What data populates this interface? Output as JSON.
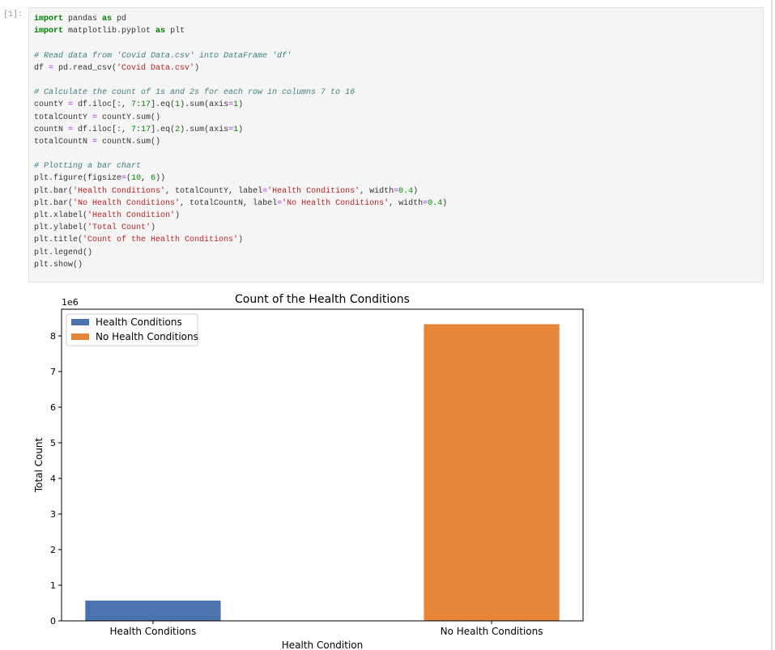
{
  "cell": {
    "prompt": "[1]:",
    "code": [
      [
        "import pandas as pd",
        "import matplotlib.pyplot as plt"
      ],
      [
        "# Read data from 'Covid Data.csv' into DataFrame 'df'",
        "df = pd.read_csv('Covid Data.csv')"
      ],
      [
        "# Calculate the count of 1s and 2s for each row in columns 7 to 16",
        "countY = df.iloc[:, 7:17].eq(1).sum(axis=1)",
        "totalCountY = countY.sum()",
        "countN = df.iloc[:, 7:17].eq(2).sum(axis=1)",
        "totalCountN = countN.sum()"
      ],
      [
        "# Plotting a bar chart",
        "plt.figure(figsize=(10, 6))",
        "plt.bar('Health Conditions', totalCountY, label='Health Conditions', width=0.4)",
        "plt.bar('No Health Conditions', totalCountN, label='No Health Conditions', width=0.4)",
        "plt.xlabel('Health Condition')",
        "plt.ylabel('Total Count')",
        "plt.title('Count of the Health Conditions')",
        "plt.legend()",
        "plt.show()"
      ]
    ]
  },
  "chart_data": {
    "type": "bar",
    "title": "Count of the Health Conditions",
    "xlabel": "Health Condition",
    "ylabel": "Total Count",
    "y_offset_label": "1e6",
    "categories": [
      "Health Conditions",
      "No Health Conditions"
    ],
    "series": [
      {
        "name": "Health Conditions",
        "color": "#4a73b0",
        "values": [
          0.57,
          null
        ]
      },
      {
        "name": "No Health Conditions",
        "color": "#e5863a",
        "values": [
          null,
          8.33
        ]
      }
    ],
    "ylim": [
      0,
      8.75
    ],
    "yticks": [
      0,
      1,
      2,
      3,
      4,
      5,
      6,
      7,
      8
    ],
    "legend": "upper left"
  }
}
